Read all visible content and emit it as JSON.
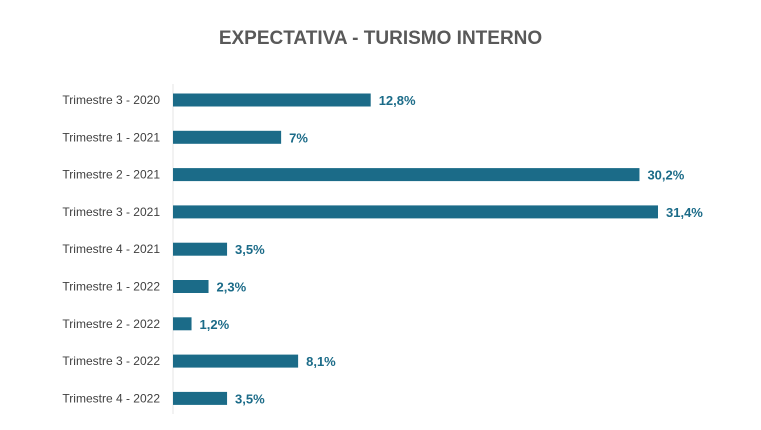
{
  "colors": {
    "bar": "#1b6b88",
    "value_label": "#1b6b88",
    "title": "#595959"
  },
  "chart_data": {
    "type": "bar",
    "orientation": "horizontal",
    "title": "EXPECTATIVA - TURISMO INTERNO",
    "xlabel": "",
    "ylabel": "",
    "grid": false,
    "legend": "none",
    "xlim": [
      0,
      34
    ],
    "categories": [
      "Trimestre 3 - 2020",
      "Trimestre 1 - 2021",
      "Trimestre 2 - 2021",
      "Trimestre 3 - 2021",
      "Trimestre 4 - 2021",
      "Trimestre 1 - 2022",
      "Trimestre 2 - 2022",
      "Trimestre 3 - 2022",
      "Trimestre 4 - 2022"
    ],
    "values": [
      12.8,
      7,
      30.2,
      31.4,
      3.5,
      2.3,
      1.2,
      8.1,
      3.5
    ],
    "value_labels": [
      "12,8%",
      "7%",
      "30,2%",
      "31,4%",
      "3,5%",
      "2,3%",
      "1,2%",
      "8,1%",
      "3,5%"
    ]
  }
}
